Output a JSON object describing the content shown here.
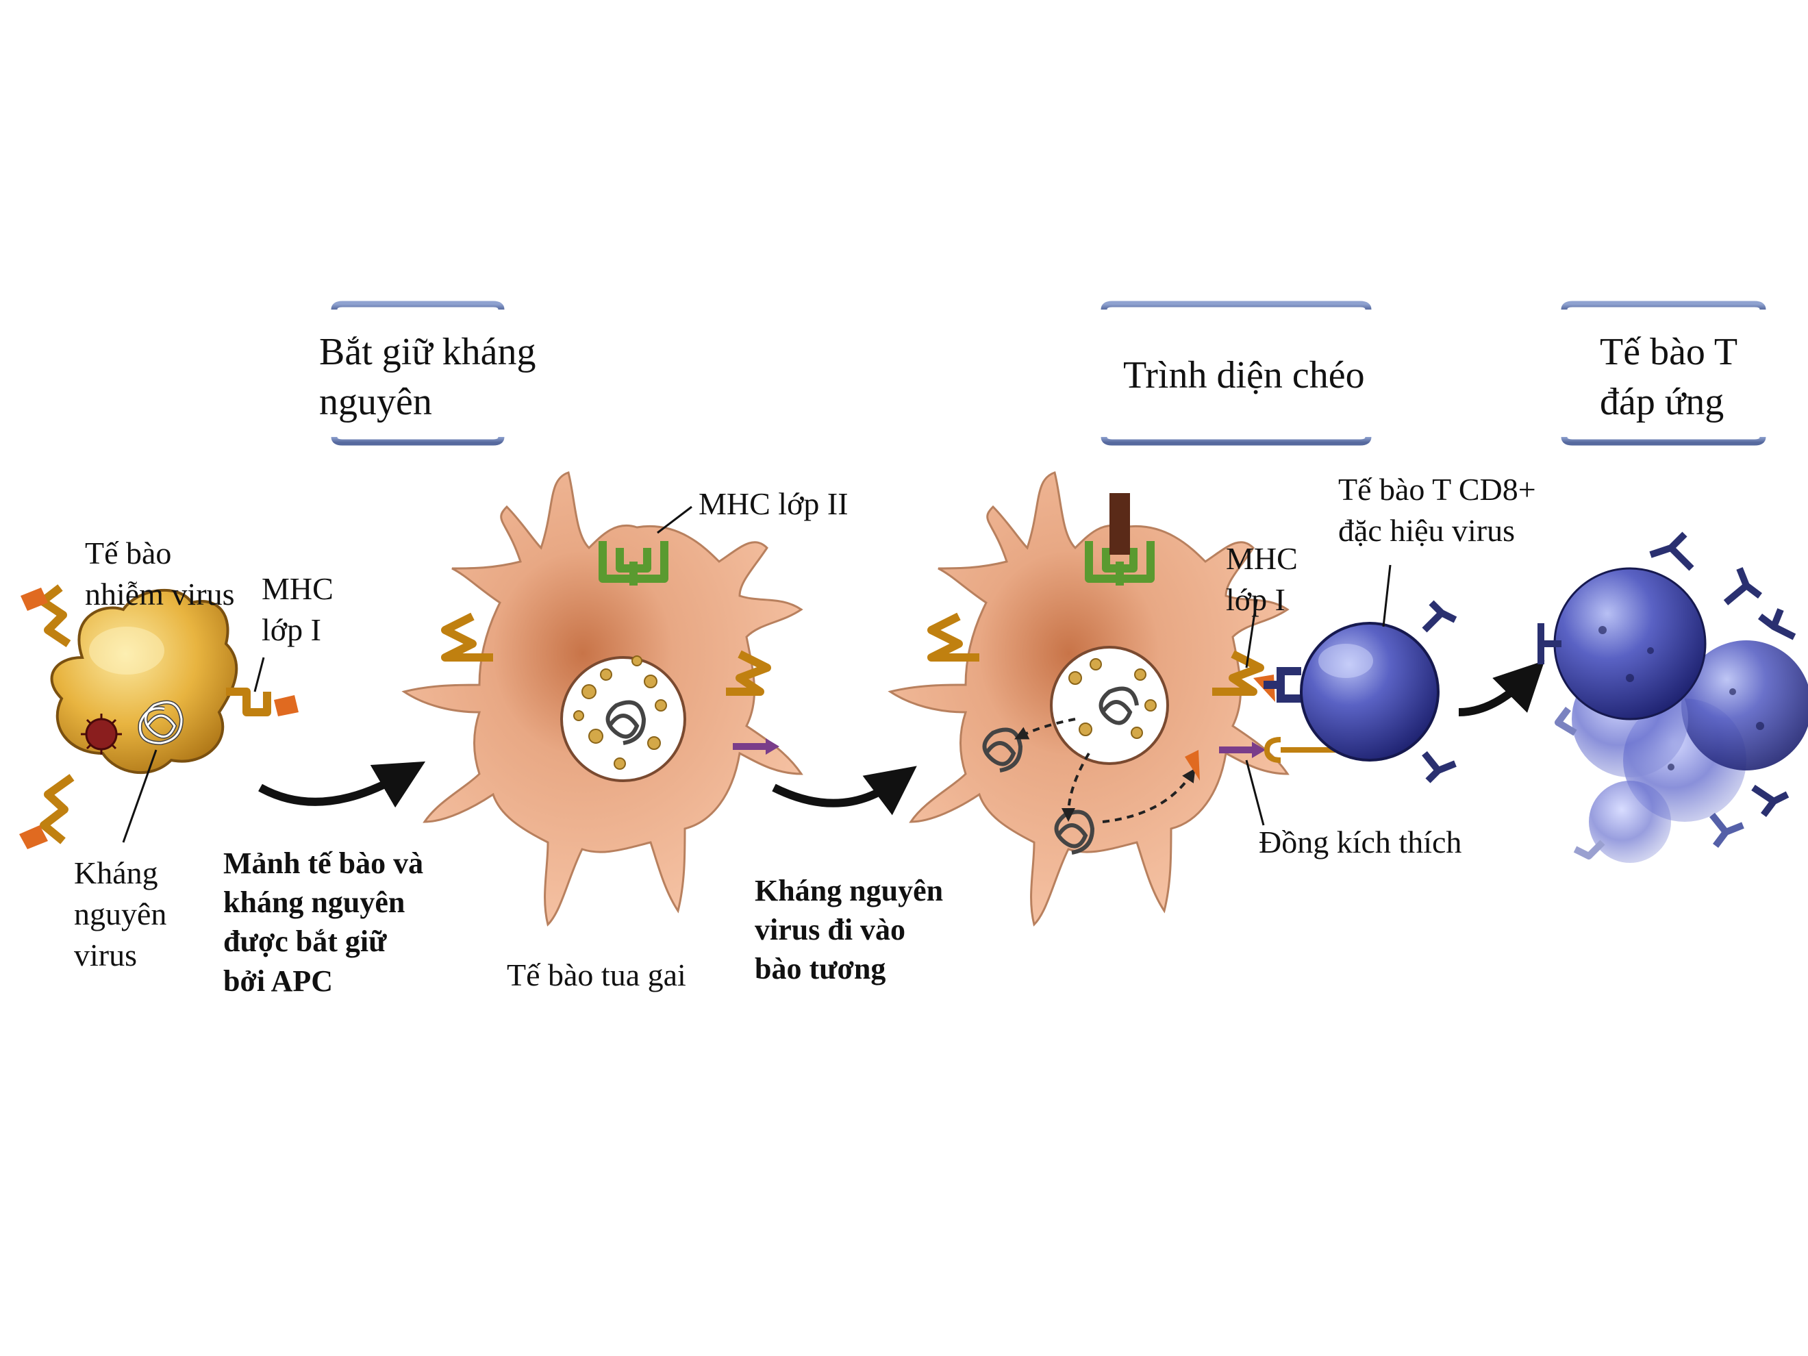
{
  "stages": {
    "capture": "Bắt giữ kháng\nnguyên",
    "cross_presentation": "Trình diện chéo",
    "t_response": "Tế bào T\nđáp ứng"
  },
  "labels": {
    "infected_cell": "Tế bào\nnhiễm virus",
    "mhc1_left": "MHC\nlớp I",
    "viral_antigen": "Kháng\nnguyên\nvirus",
    "fragments_captured": "Mảnh tế bào và\nkháng nguyên\nđược bắt giữ\nbởi APC",
    "mhc2": "MHC lớp II",
    "dendritic_cell": "Tế bào tua gai",
    "antigen_cytosol": "Kháng nguyên\nvirus đi vào\nbào tương",
    "mhc1_right": "MHC\nlớp I",
    "cd8_cell": "Tế bào T CD8+\nđặc hiệu virus",
    "costim": "Đồng kích thích"
  },
  "colors": {
    "stage_box_bar": "#6a7fb0",
    "infected_cell": "#e0a838",
    "dendritic_cell": "#f0b898",
    "t_cell": "#3a3f9a",
    "mhc1": "#e0a020",
    "mhc2": "#6fb040",
    "costim": "#7a3d8a",
    "tcr": "#2a3070",
    "peptide": "#e06a20"
  }
}
